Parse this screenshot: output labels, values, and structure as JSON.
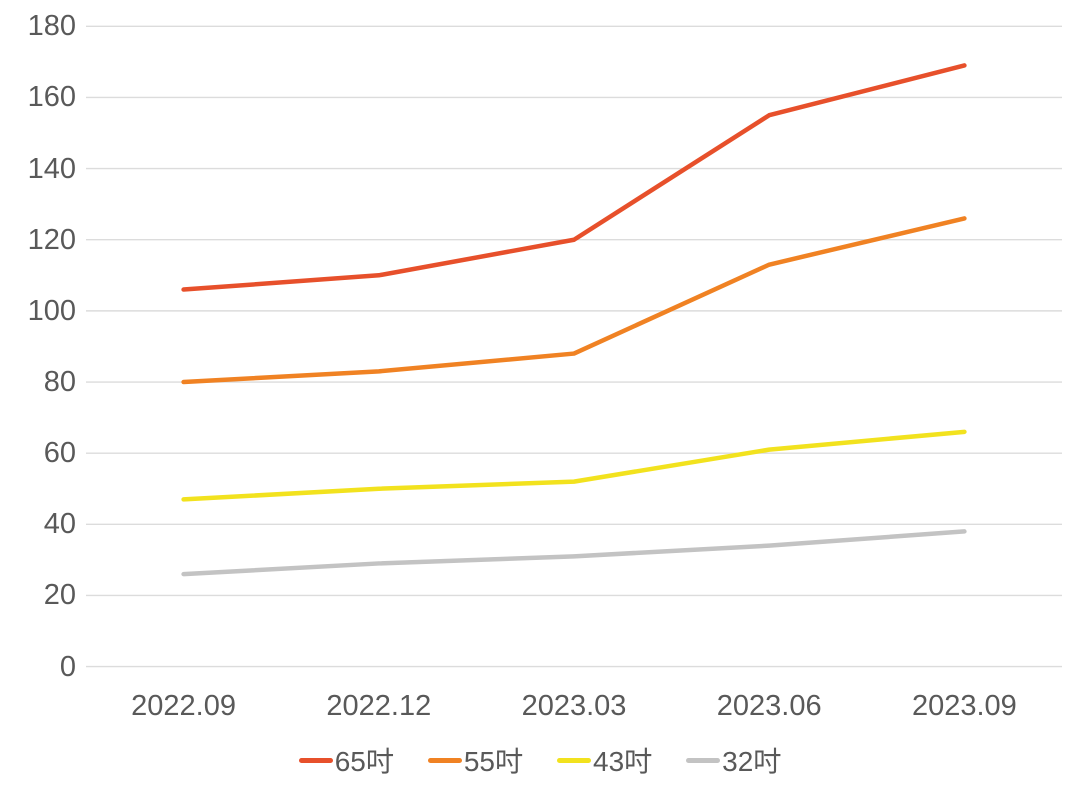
{
  "chart_data": {
    "type": "line",
    "title": "",
    "xlabel": "",
    "ylabel": "",
    "categories": [
      "2022.09",
      "2022.12",
      "2023.03",
      "2023.06",
      "2023.09"
    ],
    "series": [
      {
        "name": "65吋",
        "color": "#e7502b",
        "values": [
          106,
          110,
          120,
          155,
          169
        ]
      },
      {
        "name": "55吋",
        "color": "#f08223",
        "values": [
          80,
          83,
          88,
          113,
          126
        ]
      },
      {
        "name": "43吋",
        "color": "#f2e21e",
        "values": [
          47,
          50,
          52,
          61,
          66
        ]
      },
      {
        "name": "32吋",
        "color": "#c3c3c3",
        "values": [
          26,
          29,
          31,
          34,
          38
        ]
      }
    ],
    "ylim": [
      0,
      180
    ],
    "ytick_step": 20,
    "yticks": [
      "0",
      "20",
      "40",
      "60",
      "80",
      "100",
      "120",
      "140",
      "160",
      "180"
    ],
    "grid": true,
    "legend_position": "bottom",
    "axis_text_color": "#595959",
    "gridline_color": "#dcdcdc",
    "background_color": "#ffffff"
  }
}
